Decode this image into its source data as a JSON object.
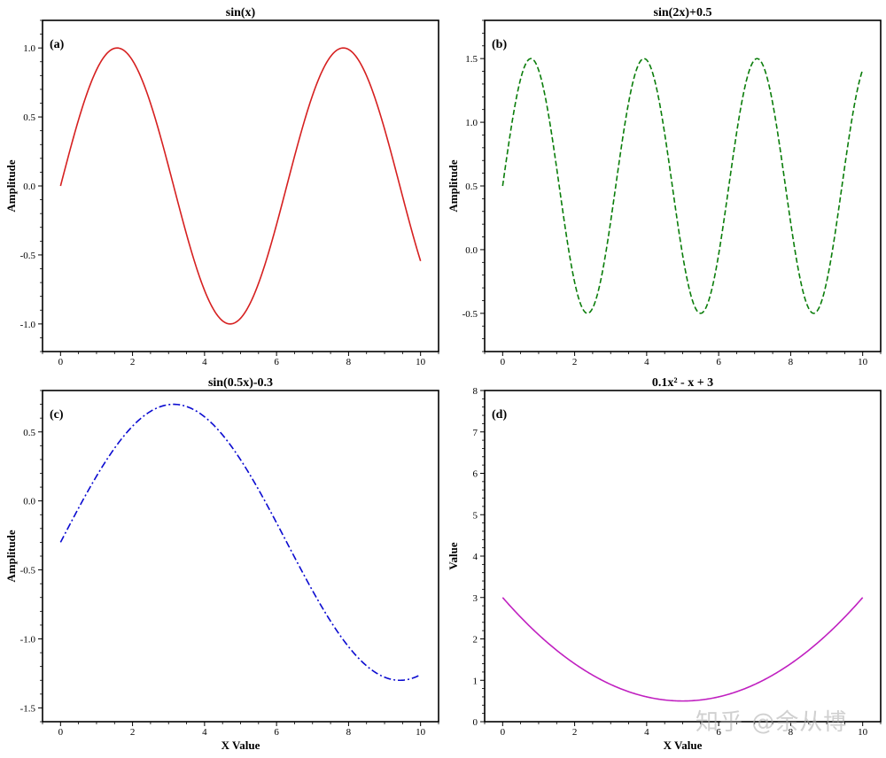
{
  "watermark": "知乎 @余从博",
  "chart_data": [
    {
      "type": "line",
      "title": "sin(x)",
      "panel_label": "(a)",
      "xlabel": "",
      "ylabel": "Amplitude",
      "xlim": [
        -0.5,
        10.5
      ],
      "ylim": [
        -1.2,
        1.2
      ],
      "xticks": [
        "0",
        "2",
        "4",
        "6",
        "8",
        "10"
      ],
      "yticks": [
        "-1.0",
        "-0.5",
        "0.0",
        "0.5",
        "1.0"
      ],
      "series": [
        {
          "expression": "sin(x)",
          "color": "#d62020",
          "linestyle": "solid",
          "x": [
            0,
            10
          ]
        }
      ]
    },
    {
      "type": "line",
      "title": "sin(2x)+0.5",
      "panel_label": "(b)",
      "xlabel": "",
      "ylabel": "Amplitude",
      "xlim": [
        -0.5,
        10.5
      ],
      "ylim": [
        -0.8,
        1.8
      ],
      "xticks": [
        "0",
        "2",
        "4",
        "6",
        "8",
        "10"
      ],
      "yticks": [
        "-0.5",
        "0.0",
        "0.5",
        "1.0",
        "1.5"
      ],
      "series": [
        {
          "expression": "sin(2x)+0.5",
          "color": "#0a7d0a",
          "linestyle": "dashed",
          "x": [
            0,
            10
          ]
        }
      ]
    },
    {
      "type": "line",
      "title": "sin(0.5x)-0.3",
      "panel_label": "(c)",
      "xlabel": "X Value",
      "ylabel": "Amplitude",
      "xlim": [
        -0.5,
        10.5
      ],
      "ylim": [
        -1.6,
        0.8
      ],
      "xticks": [
        "0",
        "2",
        "4",
        "6",
        "8",
        "10"
      ],
      "yticks": [
        "-1.5",
        "-1.0",
        "-0.5",
        "0.0",
        "0.5"
      ],
      "series": [
        {
          "expression": "sin(0.5x)-0.3",
          "color": "#0a0ad0",
          "linestyle": "dashdot",
          "x": [
            0,
            10
          ]
        }
      ]
    },
    {
      "type": "line",
      "title": "0.1x² - x + 3",
      "panel_label": "(d)",
      "xlabel": "X Value",
      "ylabel": "Value",
      "xlim": [
        -0.5,
        10.5
      ],
      "ylim": [
        0,
        8
      ],
      "xticks": [
        "0",
        "2",
        "4",
        "6",
        "8",
        "10"
      ],
      "yticks": [
        "0",
        "1",
        "2",
        "3",
        "4",
        "5",
        "6",
        "7",
        "8"
      ],
      "series": [
        {
          "expression": "0.1x² - x + 3",
          "color": "#c020c0",
          "linestyle": "solid",
          "x": [
            0,
            10
          ]
        }
      ]
    }
  ]
}
